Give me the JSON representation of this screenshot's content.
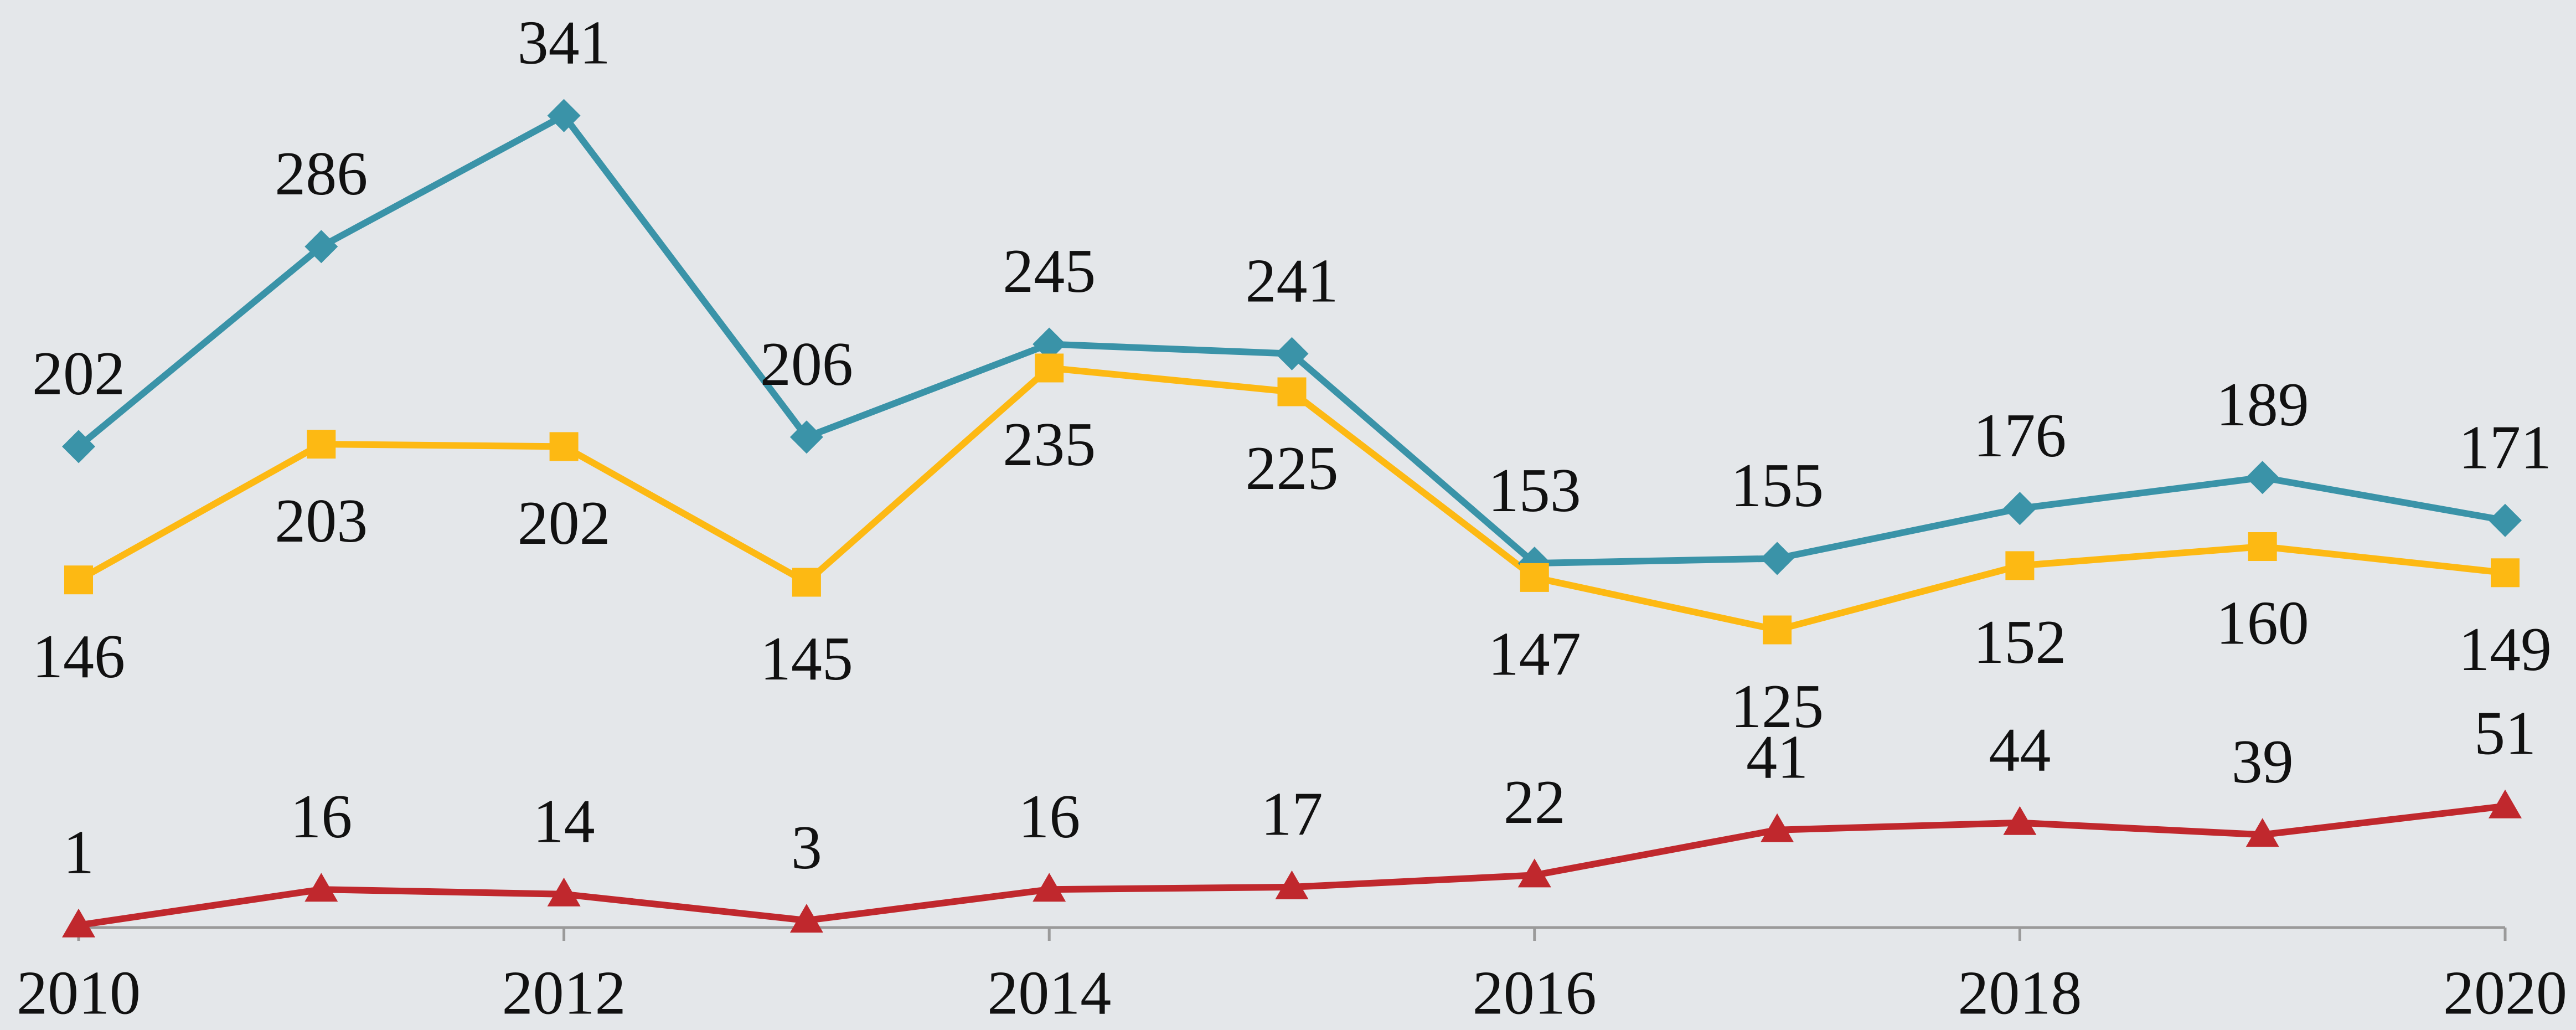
{
  "chart_data": {
    "type": "line",
    "x": [
      2010,
      2011,
      2012,
      2013,
      2014,
      2015,
      2016,
      2017,
      2018,
      2019,
      2020
    ],
    "xlim": [
      2010,
      2020
    ],
    "xticks": [
      2010,
      2012,
      2014,
      2016,
      2018,
      2020
    ],
    "ylim": [
      0,
      350
    ],
    "yticks": [
      0
    ],
    "series": [
      {
        "color": "#3a93a8",
        "marker": "diamond",
        "label_position": "above",
        "values": [
          202,
          286,
          341,
          206,
          245,
          241,
          153,
          155,
          176,
          189,
          171
        ]
      },
      {
        "color": "#fdb913",
        "marker": "square",
        "label_position": "below",
        "values": [
          146,
          203,
          202,
          145,
          235,
          225,
          147,
          125,
          152,
          160,
          149
        ]
      },
      {
        "color": "#c0282d",
        "marker": "triangle",
        "label_position": "above",
        "values": [
          1,
          16,
          14,
          3,
          16,
          17,
          22,
          41,
          44,
          39,
          51
        ]
      }
    ]
  }
}
